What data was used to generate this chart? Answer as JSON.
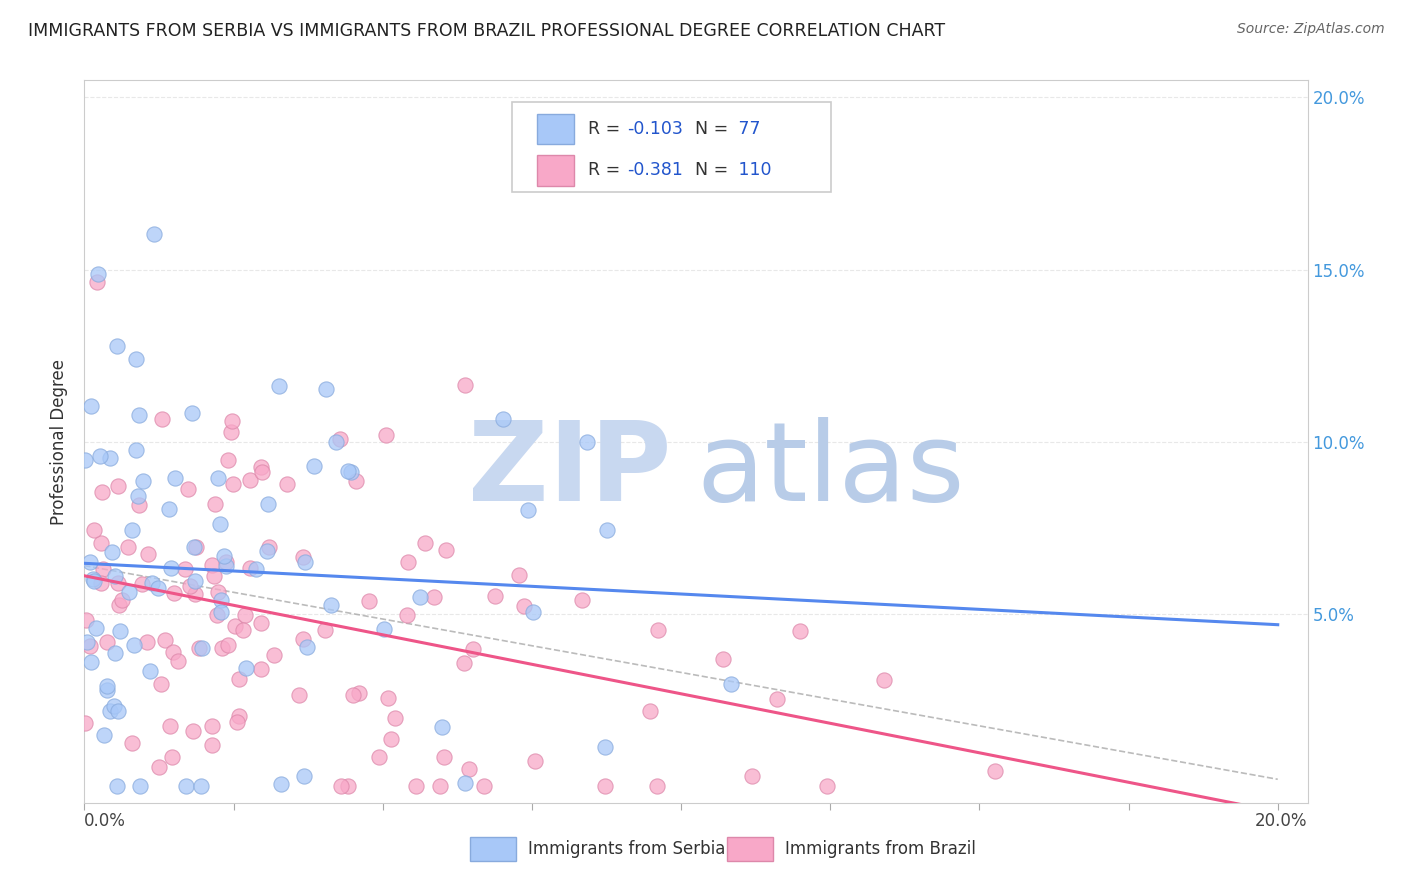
{
  "title": "IMMIGRANTS FROM SERBIA VS IMMIGRANTS FROM BRAZIL PROFESSIONAL DEGREE CORRELATION CHART",
  "source": "Source: ZipAtlas.com",
  "ylabel": "Professional Degree",
  "ylabel_right_ticks": [
    "20.0%",
    "15.0%",
    "10.0%",
    "5.0%",
    ""
  ],
  "ylabel_right_vals": [
    0.2,
    0.15,
    0.1,
    0.05,
    0.0
  ],
  "serbia_R": -0.103,
  "serbia_N": 77,
  "brazil_R": -0.381,
  "brazil_N": 110,
  "serbia_color": "#a8c8f8",
  "brazil_color": "#f8a8c8",
  "serbia_line_color": "#5588ee",
  "brazil_line_color": "#ee5588",
  "serbia_marker_edge": "#88aadd",
  "brazil_marker_edge": "#dd88aa",
  "watermark_zip_color": "#c8d8f0",
  "watermark_atlas_color": "#b8cce8",
  "background": "#ffffff",
  "xlim": [
    0.0,
    0.205
  ],
  "ylim": [
    -0.005,
    0.205
  ],
  "grid_color": "#e8e8e8",
  "dashed_line_color": "#aaaaaa"
}
